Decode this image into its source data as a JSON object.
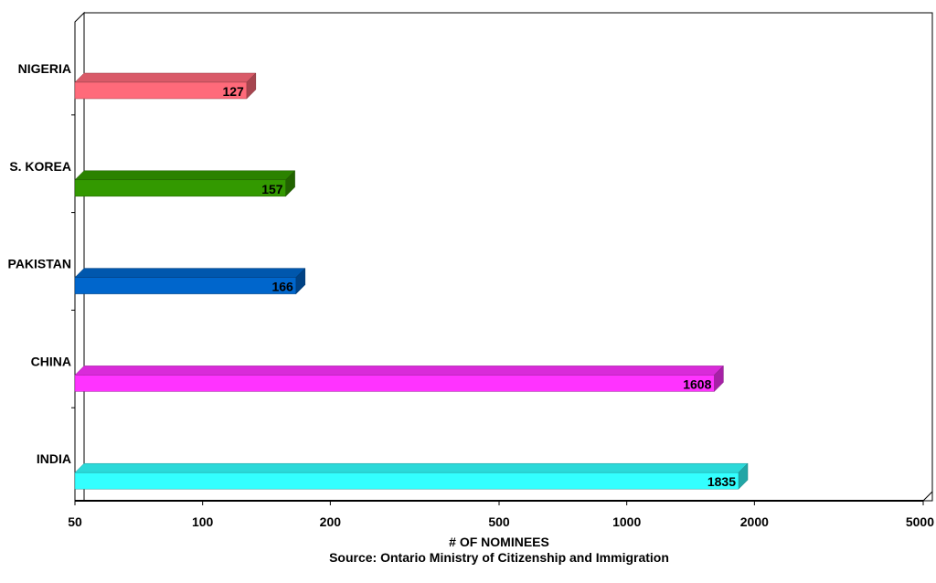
{
  "chart_data": {
    "type": "bar",
    "orientation": "horizontal",
    "style": "3d",
    "x_scale": "log",
    "xlim": [
      50,
      5000
    ],
    "x_ticks": [
      "50",
      "100",
      "200",
      "500",
      "1000",
      "2000",
      "5000"
    ],
    "x_tick_values": [
      50,
      100,
      200,
      500,
      1000,
      2000,
      5000
    ],
    "xlabel": "# OF NOMINEES",
    "source": "Source: Ontario Ministry of Citizenship and Immigration",
    "grid": false,
    "categories": [
      "NIGERIA",
      "S. KOREA",
      "PAKISTAN",
      "CHINA",
      "INDIA"
    ],
    "values": [
      127,
      157,
      166,
      1608,
      1835
    ],
    "data_labels": [
      "127",
      "157",
      "166",
      "1608",
      "1835"
    ],
    "colors": [
      "#ff6a7a",
      "#339900",
      "#0066cc",
      "#ff33ff",
      "#33ffff"
    ]
  }
}
